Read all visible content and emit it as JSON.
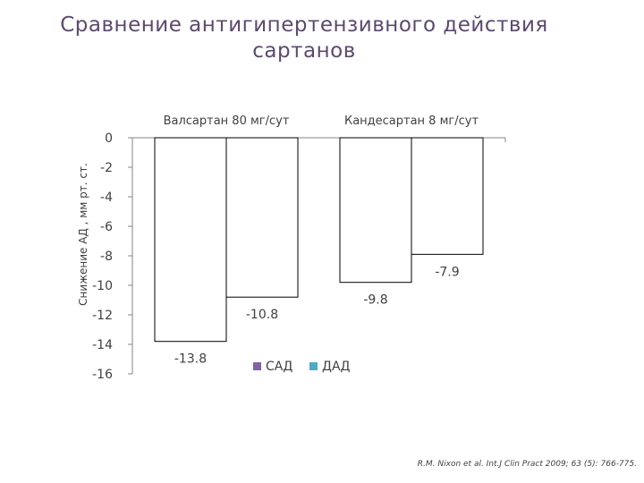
{
  "title_line1": "Сравнение антигипертензивного действия",
  "title_line2": "сартанов",
  "citation": "R.M. Nixon et al. Int.J Clin Pract 2009; 63 (5): 766-775.",
  "chart_data": {
    "type": "bar",
    "categories": [
      "Валсартан 80 мг/сут",
      "Кандесартан 8 мг/сут"
    ],
    "series": [
      {
        "name": "САД",
        "values": [
          -13.8,
          -9.8
        ],
        "color": "#8064a2"
      },
      {
        "name": "ДАД",
        "values": [
          -10.8,
          -7.9
        ],
        "color": "#4bacc6"
      }
    ],
    "ylabel": "Снижение АД , мм рт. ст.",
    "ylim": [
      -16,
      0
    ],
    "yticks": [
      0,
      -2,
      -4,
      -6,
      -8,
      -10,
      -12,
      -14,
      -16
    ],
    "ytick_labels": [
      "0",
      "-2",
      "-4",
      "-6",
      "-8",
      "-10",
      "-12",
      "-14",
      "-16"
    ],
    "category_labels_position": "top",
    "legend_position": "bottom-center",
    "grid": false,
    "bar_fill": "#ffffff",
    "bar_stroke": "#000000"
  }
}
